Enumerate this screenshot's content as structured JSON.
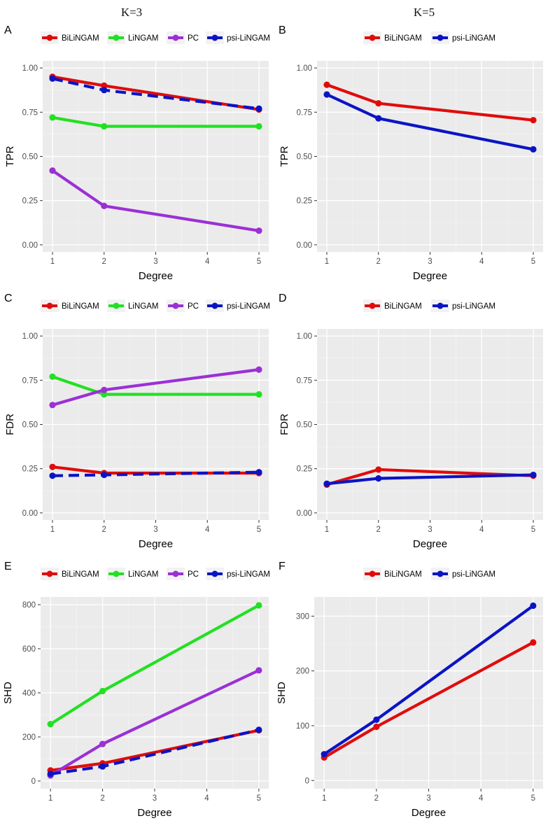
{
  "columns": [
    {
      "title": "K=3"
    },
    {
      "title": "K=5"
    }
  ],
  "colors": {
    "BiLiNGAM": "#e00c0c",
    "LiNGAM": "#22e022",
    "PC": "#9b30d6",
    "psi-LiNGAM": "#0b14c4",
    "panel_bg": "#ebebeb",
    "grid_major": "#ffffff",
    "grid_minor": "#f4f4f4"
  },
  "chart_data": [
    {
      "panel": "A",
      "type": "line",
      "xlabel": "Degree",
      "ylabel": "TPR",
      "x": [
        1,
        2,
        5
      ],
      "xticks": [
        1,
        2,
        3,
        4,
        5
      ],
      "ylim": [
        -0.04,
        1.04
      ],
      "yticks": [
        "0.00",
        "0.25",
        "0.50",
        "0.75",
        "1.00"
      ],
      "series": [
        {
          "name": "BiLiNGAM",
          "values": [
            0.95,
            0.9,
            0.765
          ],
          "dashed": false
        },
        {
          "name": "LiNGAM",
          "values": [
            0.72,
            0.67,
            0.67
          ],
          "dashed": false
        },
        {
          "name": "PC",
          "values": [
            0.42,
            0.22,
            0.08
          ],
          "dashed": false
        },
        {
          "name": "psi-LiNGAM",
          "values": [
            0.94,
            0.875,
            0.77
          ],
          "dashed": true
        }
      ]
    },
    {
      "panel": "B",
      "type": "line",
      "xlabel": "Degree",
      "ylabel": "TPR",
      "x": [
        1,
        2,
        5
      ],
      "xticks": [
        1,
        2,
        3,
        4,
        5
      ],
      "ylim": [
        -0.04,
        1.04
      ],
      "yticks": [
        "0.00",
        "0.25",
        "0.50",
        "0.75",
        "1.00"
      ],
      "series": [
        {
          "name": "BiLiNGAM",
          "values": [
            0.905,
            0.8,
            0.705
          ],
          "dashed": false
        },
        {
          "name": "psi-LiNGAM",
          "values": [
            0.85,
            0.715,
            0.54
          ],
          "dashed": false
        }
      ]
    },
    {
      "panel": "C",
      "type": "line",
      "xlabel": "Degree",
      "ylabel": "FDR",
      "x": [
        1,
        2,
        5
      ],
      "xticks": [
        1,
        2,
        3,
        4,
        5
      ],
      "ylim": [
        -0.04,
        1.04
      ],
      "yticks": [
        "0.00",
        "0.25",
        "0.50",
        "0.75",
        "1.00"
      ],
      "series": [
        {
          "name": "BiLiNGAM",
          "values": [
            0.26,
            0.225,
            0.225
          ],
          "dashed": false
        },
        {
          "name": "LiNGAM",
          "values": [
            0.77,
            0.67,
            0.67
          ],
          "dashed": false
        },
        {
          "name": "PC",
          "values": [
            0.61,
            0.695,
            0.81
          ],
          "dashed": false
        },
        {
          "name": "psi-LiNGAM",
          "values": [
            0.21,
            0.215,
            0.23
          ],
          "dashed": true
        }
      ]
    },
    {
      "panel": "D",
      "type": "line",
      "xlabel": "Degree",
      "ylabel": "FDR",
      "x": [
        1,
        2,
        5
      ],
      "xticks": [
        1,
        2,
        3,
        4,
        5
      ],
      "ylim": [
        -0.04,
        1.04
      ],
      "yticks": [
        "0.00",
        "0.25",
        "0.50",
        "0.75",
        "1.00"
      ],
      "series": [
        {
          "name": "BiLiNGAM",
          "values": [
            0.16,
            0.245,
            0.21
          ],
          "dashed": false
        },
        {
          "name": "psi-LiNGAM",
          "values": [
            0.165,
            0.195,
            0.215
          ],
          "dashed": false
        }
      ]
    },
    {
      "panel": "E",
      "type": "line",
      "xlabel": "Degree",
      "ylabel": "SHD",
      "x": [
        1,
        2,
        5
      ],
      "xticks": [
        1,
        2,
        3,
        4,
        5
      ],
      "ylim": [
        -35,
        835
      ],
      "yticks": [
        "0",
        "200",
        "400",
        "600",
        "800"
      ],
      "series": [
        {
          "name": "BiLiNGAM",
          "values": [
            48,
            80,
            230
          ],
          "dashed": false
        },
        {
          "name": "LiNGAM",
          "values": [
            258,
            408,
            797
          ],
          "dashed": false
        },
        {
          "name": "PC",
          "values": [
            25,
            168,
            502
          ],
          "dashed": false
        },
        {
          "name": "psi-LiNGAM",
          "values": [
            32,
            66,
            232
          ],
          "dashed": true
        }
      ]
    },
    {
      "panel": "F",
      "type": "line",
      "xlabel": "Degree",
      "ylabel": "SHD",
      "x": [
        1,
        2,
        5
      ],
      "xticks": [
        1,
        2,
        3,
        4,
        5
      ],
      "ylim": [
        -15,
        335
      ],
      "yticks": [
        "0",
        "100",
        "200",
        "300"
      ],
      "series": [
        {
          "name": "BiLiNGAM",
          "values": [
            42,
            98,
            252
          ],
          "dashed": false
        },
        {
          "name": "psi-LiNGAM",
          "values": [
            48,
            111,
            319
          ],
          "dashed": false
        }
      ]
    }
  ]
}
